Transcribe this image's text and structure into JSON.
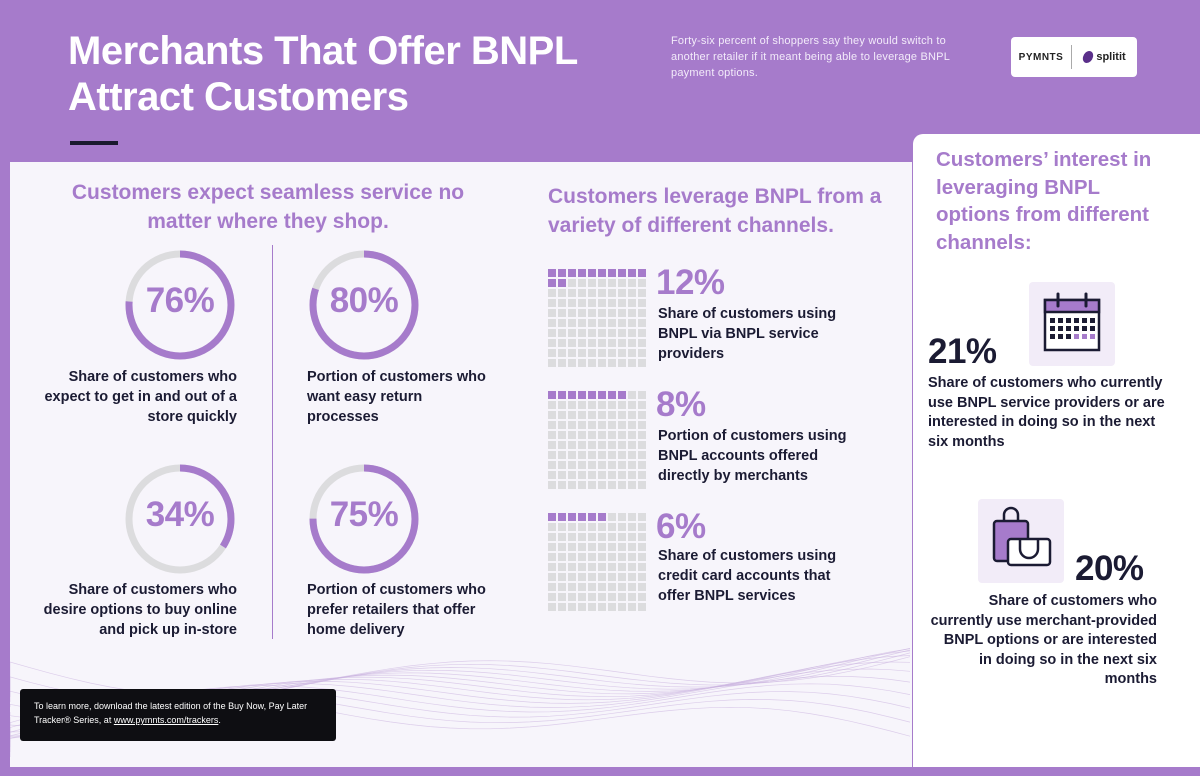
{
  "header": {
    "title": "Merchants That Offer BNPL Attract Customers",
    "intro": "Forty-six percent of shoppers say they would switch to another retailer if it meant being able to leverage BNPL payment options.",
    "logo_pymnts": "PYMNTS",
    "logo_splitit": "splitit"
  },
  "colors": {
    "accent": "#a67bcb",
    "dark_text": "#1b1b33",
    "panel": "#f7f5fb",
    "ring_track": "#dcdcde"
  },
  "seamless": {
    "heading": "Customers expect seamless service no matter where they shop.",
    "stats": [
      {
        "value": "76%",
        "fraction": 0.76,
        "text": "Share of customers who expect to get in and out of a store quickly"
      },
      {
        "value": "80%",
        "fraction": 0.8,
        "text": "Portion of customers who want easy return processes"
      },
      {
        "value": "34%",
        "fraction": 0.34,
        "text": "Share of customers who desire options to buy online and pick up in-store"
      },
      {
        "value": "75%",
        "fraction": 0.75,
        "text": "Portion of customers who prefer retailers that offer home delivery"
      }
    ]
  },
  "channels": {
    "heading": "Customers leverage BNPL from a variety of different channels.",
    "stats": [
      {
        "value": "12%",
        "filled": 12,
        "text": "Share of customers using BNPL via BNPL service providers"
      },
      {
        "value": "8%",
        "filled": 8,
        "text": "Portion of customers using BNPL accounts offered directly by merchants"
      },
      {
        "value": "6%",
        "filled": 6,
        "text": "Share of customers using credit card accounts that offer BNPL services"
      }
    ]
  },
  "interest": {
    "heading": "Customers’ interest in leveraging BNPL options from different channels:",
    "stats": [
      {
        "value": "21%",
        "icon": "calendar-icon",
        "text": "Share of customers who currently use BNPL service providers or are interested in doing so in the next six months"
      },
      {
        "value": "20%",
        "icon": "shopping-bag-icon",
        "text": "Share of customers who currently use merchant-provided BNPL options or are interested in doing so in the next six months"
      }
    ]
  },
  "cta": {
    "text_before": "To learn more, download the latest edition of the Buy Now, Pay Later Tracker® Series, at ",
    "link": "www.pymnts.com/trackers",
    "text_after": "."
  }
}
